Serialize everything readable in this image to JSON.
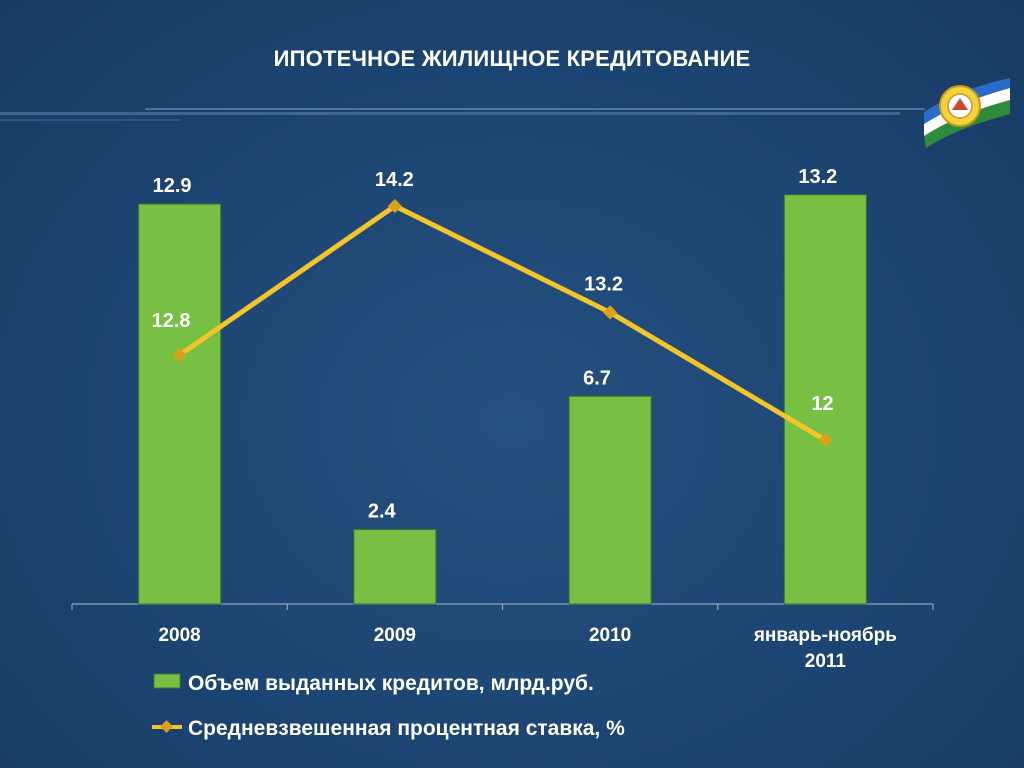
{
  "title": "ИПОТЕЧНОЕ ЖИЛИЩНОЕ КРЕДИТОВАНИЕ",
  "colors": {
    "bar": "#78c044",
    "bar_stroke": "#3f7a24",
    "line": "#f3c52a",
    "marker": "#d9a21a",
    "axis": "#8fa3bd"
  },
  "chart_data": {
    "type": "bar",
    "categories": [
      "2008",
      "2009",
      "2010",
      "январь-ноябрь 2011"
    ],
    "series": [
      {
        "name": "Объем выданных кредитов, млрд.руб.",
        "type": "bar",
        "values": [
          12.9,
          2.4,
          6.7,
          13.2
        ],
        "labels": [
          "12.9",
          "2.4",
          "6.7",
          "13.2"
        ]
      },
      {
        "name": "Средневзвешенная процентная ставка, %",
        "type": "line",
        "values": [
          12.8,
          14.2,
          13.2,
          12
        ],
        "labels": [
          "12.8",
          "14.2",
          "13.2",
          "12"
        ]
      }
    ],
    "legend_position": "bottom-left",
    "grid": false
  }
}
